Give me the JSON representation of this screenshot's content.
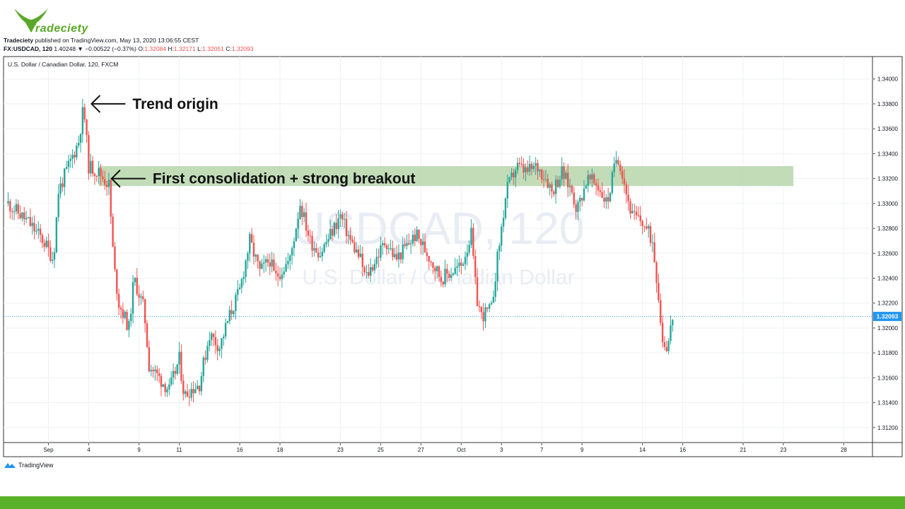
{
  "header": {
    "logo_text": "Tradeciety",
    "author": "Tradeciety",
    "published_text": "published on TradingView.com, May 13, 2020 13:06:55 CEST",
    "symbol_line": "FX:USDCAD, 120",
    "price_change": "1.40248 ▼ −0.00522 (−0.37%)",
    "open_label": "O:",
    "open": "1.32084",
    "high_label": "H:",
    "high": "1.32171",
    "low_label": "L:",
    "low": "1.32051",
    "close_label": "C:",
    "close": "1.32093"
  },
  "footer": {
    "brand": "TradingView"
  },
  "colors": {
    "up": "#26a69a",
    "down": "#ef5350",
    "zone": "#b7d6ac",
    "brand_green": "#5ab22a",
    "last_price": "#2196f3"
  },
  "chart_data": {
    "type": "candlestick",
    "title": "U.S. Dollar / Canadian Dollar, 120, FXCM",
    "watermark_symbol": "USDCAD, 120",
    "watermark_name": "U.S. Dollar / Canadian Dollar",
    "ylim": [
      1.3108,
      1.3418
    ],
    "y_ticks": [
      "1.34000",
      "1.33800",
      "1.33600",
      "1.33400",
      "1.33200",
      "1.33000",
      "1.32800",
      "1.32600",
      "1.32400",
      "1.32200",
      "1.32000",
      "1.31800",
      "1.31600",
      "1.31400",
      "1.31200"
    ],
    "x_ticks": [
      {
        "label": "Sep",
        "bar": 8
      },
      {
        "label": "4",
        "bar": 16
      },
      {
        "label": "9",
        "bar": 26
      },
      {
        "label": "11",
        "bar": 34
      },
      {
        "label": "16",
        "bar": 46
      },
      {
        "label": "18",
        "bar": 54
      },
      {
        "label": "23",
        "bar": 66
      },
      {
        "label": "25",
        "bar": 74
      },
      {
        "label": "27",
        "bar": 82
      },
      {
        "label": "Oct",
        "bar": 90
      },
      {
        "label": "3",
        "bar": 98
      },
      {
        "label": "7",
        "bar": 106
      },
      {
        "label": "9",
        "bar": 114
      },
      {
        "label": "14",
        "bar": 126
      },
      {
        "label": "16",
        "bar": 134
      },
      {
        "label": "21",
        "bar": 146
      },
      {
        "label": "23",
        "bar": 154
      },
      {
        "label": "28",
        "bar": 166
      }
    ],
    "last_price": "1.32093",
    "last_price_value": 1.32093,
    "support_zone": {
      "low": 1.3314,
      "high": 1.333,
      "from_bar": 18,
      "to_bar": 156
    },
    "annotations": [
      {
        "text": "Trend origin",
        "bar": 16,
        "price": 1.338
      },
      {
        "text": "First consolidation + strong breakout",
        "bar": 20,
        "price": 1.332
      }
    ],
    "anchors": [
      [
        0,
        1.33
      ],
      [
        4,
        1.3285
      ],
      [
        7,
        1.327
      ],
      [
        9,
        1.3255
      ],
      [
        10,
        1.331
      ],
      [
        12,
        1.333
      ],
      [
        14,
        1.335
      ],
      [
        15,
        1.3378
      ],
      [
        16,
        1.333
      ],
      [
        18,
        1.3325
      ],
      [
        20,
        1.3315
      ],
      [
        21,
        1.325
      ],
      [
        22,
        1.322
      ],
      [
        24,
        1.32
      ],
      [
        25,
        1.324
      ],
      [
        27,
        1.3215
      ],
      [
        28,
        1.317
      ],
      [
        30,
        1.316
      ],
      [
        32,
        1.315
      ],
      [
        34,
        1.3175
      ],
      [
        35,
        1.3145
      ],
      [
        36,
        1.315
      ],
      [
        38,
        1.3155
      ],
      [
        40,
        1.3195
      ],
      [
        42,
        1.3185
      ],
      [
        44,
        1.321
      ],
      [
        46,
        1.323
      ],
      [
        48,
        1.327
      ],
      [
        50,
        1.3245
      ],
      [
        52,
        1.3255
      ],
      [
        53,
        1.324
      ],
      [
        56,
        1.3255
      ],
      [
        58,
        1.33
      ],
      [
        60,
        1.327
      ],
      [
        62,
        1.326
      ],
      [
        64,
        1.3275
      ],
      [
        66,
        1.329
      ],
      [
        68,
        1.327
      ],
      [
        70,
        1.3255
      ],
      [
        71,
        1.324
      ],
      [
        73,
        1.3255
      ],
      [
        75,
        1.327
      ],
      [
        77,
        1.3255
      ],
      [
        79,
        1.3265
      ],
      [
        81,
        1.3275
      ],
      [
        84,
        1.3255
      ],
      [
        86,
        1.324
      ],
      [
        88,
        1.3245
      ],
      [
        90,
        1.325
      ],
      [
        92,
        1.3275
      ],
      [
        93,
        1.3225
      ],
      [
        94,
        1.321
      ],
      [
        96,
        1.3215
      ],
      [
        97,
        1.325
      ],
      [
        99,
        1.331
      ],
      [
        101,
        1.333
      ],
      [
        103,
        1.3325
      ],
      [
        105,
        1.333
      ],
      [
        107,
        1.332
      ],
      [
        108,
        1.331
      ],
      [
        110,
        1.3325
      ],
      [
        112,
        1.331
      ],
      [
        113,
        1.3295
      ],
      [
        115,
        1.332
      ],
      [
        117,
        1.3315
      ],
      [
        119,
        1.33
      ],
      [
        120,
        1.332
      ],
      [
        121,
        1.334
      ],
      [
        122,
        1.3325
      ],
      [
        123,
        1.3305
      ],
      [
        124,
        1.329
      ],
      [
        126,
        1.3285
      ],
      [
        128,
        1.327
      ],
      [
        129,
        1.3235
      ],
      [
        130,
        1.319
      ],
      [
        131,
        1.3185
      ],
      [
        132,
        1.3209
      ]
    ]
  }
}
